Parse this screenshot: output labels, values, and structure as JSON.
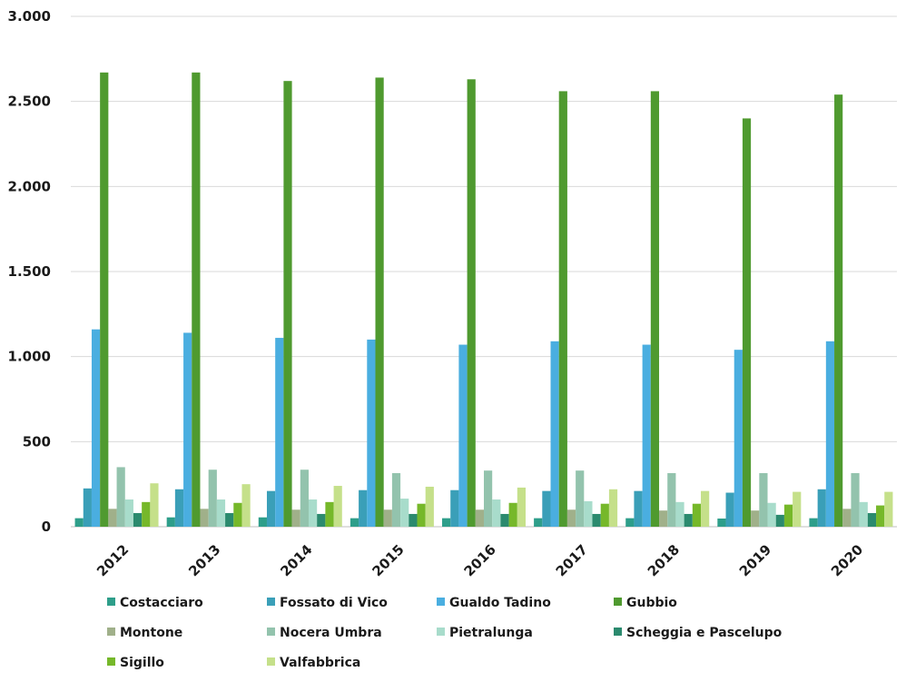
{
  "chart_data": {
    "type": "bar",
    "title": "",
    "xlabel": "",
    "ylabel": "",
    "categories": [
      "2012",
      "2013",
      "2014",
      "2015",
      "2016",
      "2017",
      "2018",
      "2019",
      "2020"
    ],
    "ylim": [
      0,
      3000
    ],
    "yticks": [
      0,
      500,
      1000,
      1500,
      2000,
      2500,
      3000
    ],
    "ytick_labels": [
      "0",
      "500",
      "1.000",
      "1.500",
      "2.000",
      "2.500",
      "3.000"
    ],
    "grid": true,
    "legend_position": "bottom",
    "series": [
      {
        "name": "Costacciaro",
        "color": "#2e9e8a",
        "values": [
          50,
          55,
          55,
          50,
          50,
          50,
          50,
          48,
          50
        ]
      },
      {
        "name": "Fossato di Vico",
        "color": "#3a9fb8",
        "values": [
          225,
          220,
          210,
          215,
          215,
          210,
          210,
          200,
          220
        ]
      },
      {
        "name": "Gualdo Tadino",
        "color": "#4aaee0",
        "values": [
          1160,
          1140,
          1110,
          1100,
          1070,
          1090,
          1070,
          1040,
          1090
        ]
      },
      {
        "name": "Gubbio",
        "color": "#4f9a2f",
        "values": [
          2670,
          2670,
          2620,
          2640,
          2630,
          2560,
          2560,
          2400,
          2540
        ]
      },
      {
        "name": "Montone",
        "color": "#a0b08a",
        "values": [
          105,
          105,
          100,
          100,
          100,
          100,
          95,
          95,
          105
        ]
      },
      {
        "name": "Nocera Umbra",
        "color": "#93c3ad",
        "values": [
          350,
          335,
          335,
          315,
          330,
          330,
          315,
          315,
          315
        ]
      },
      {
        "name": "Pietralunga",
        "color": "#a8dccb",
        "values": [
          160,
          160,
          160,
          165,
          160,
          150,
          145,
          140,
          145
        ]
      },
      {
        "name": "Scheggia e Pascelupo",
        "color": "#2b8a6e",
        "values": [
          80,
          80,
          75,
          75,
          75,
          75,
          75,
          70,
          80
        ]
      },
      {
        "name": "Sigillo",
        "color": "#76b82a",
        "values": [
          145,
          140,
          145,
          135,
          140,
          135,
          135,
          130,
          125
        ]
      },
      {
        "name": "Valfabbrica",
        "color": "#c5e08a",
        "values": [
          255,
          250,
          240,
          235,
          230,
          220,
          210,
          205,
          205
        ]
      }
    ]
  }
}
